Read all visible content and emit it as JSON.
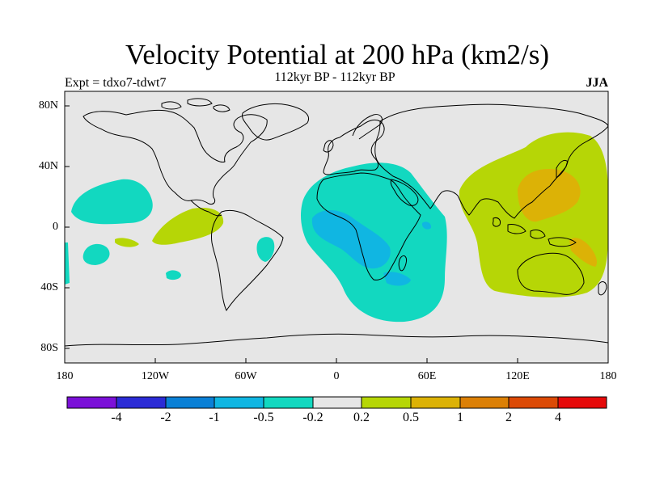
{
  "title": "Velocity Potential at 200 hPa (km2/s)",
  "subtitle": "112kyr BP - 112kyr BP",
  "left_label": "Expt = tdxo7-tdwt7",
  "right_label": "JJA",
  "axes": {
    "y_ticks": [
      "80N",
      "40N",
      "0",
      "40S",
      "80S"
    ],
    "x_ticks": [
      "180",
      "120W",
      "60W",
      "0",
      "60E",
      "120E",
      "180"
    ]
  },
  "colorbar": {
    "colors": [
      "#7b10d8",
      "#2b2bd6",
      "#0a80d6",
      "#10b6e2",
      "#12d8c0",
      "#e6e6e6",
      "#b6d606",
      "#dcb206",
      "#dc8006",
      "#dc4a06",
      "#e60a0a"
    ],
    "labels": [
      "-4",
      "-2",
      "-1",
      "-0.5",
      "-0.2",
      "0.2",
      "0.5",
      "1",
      "2",
      "4"
    ]
  }
}
